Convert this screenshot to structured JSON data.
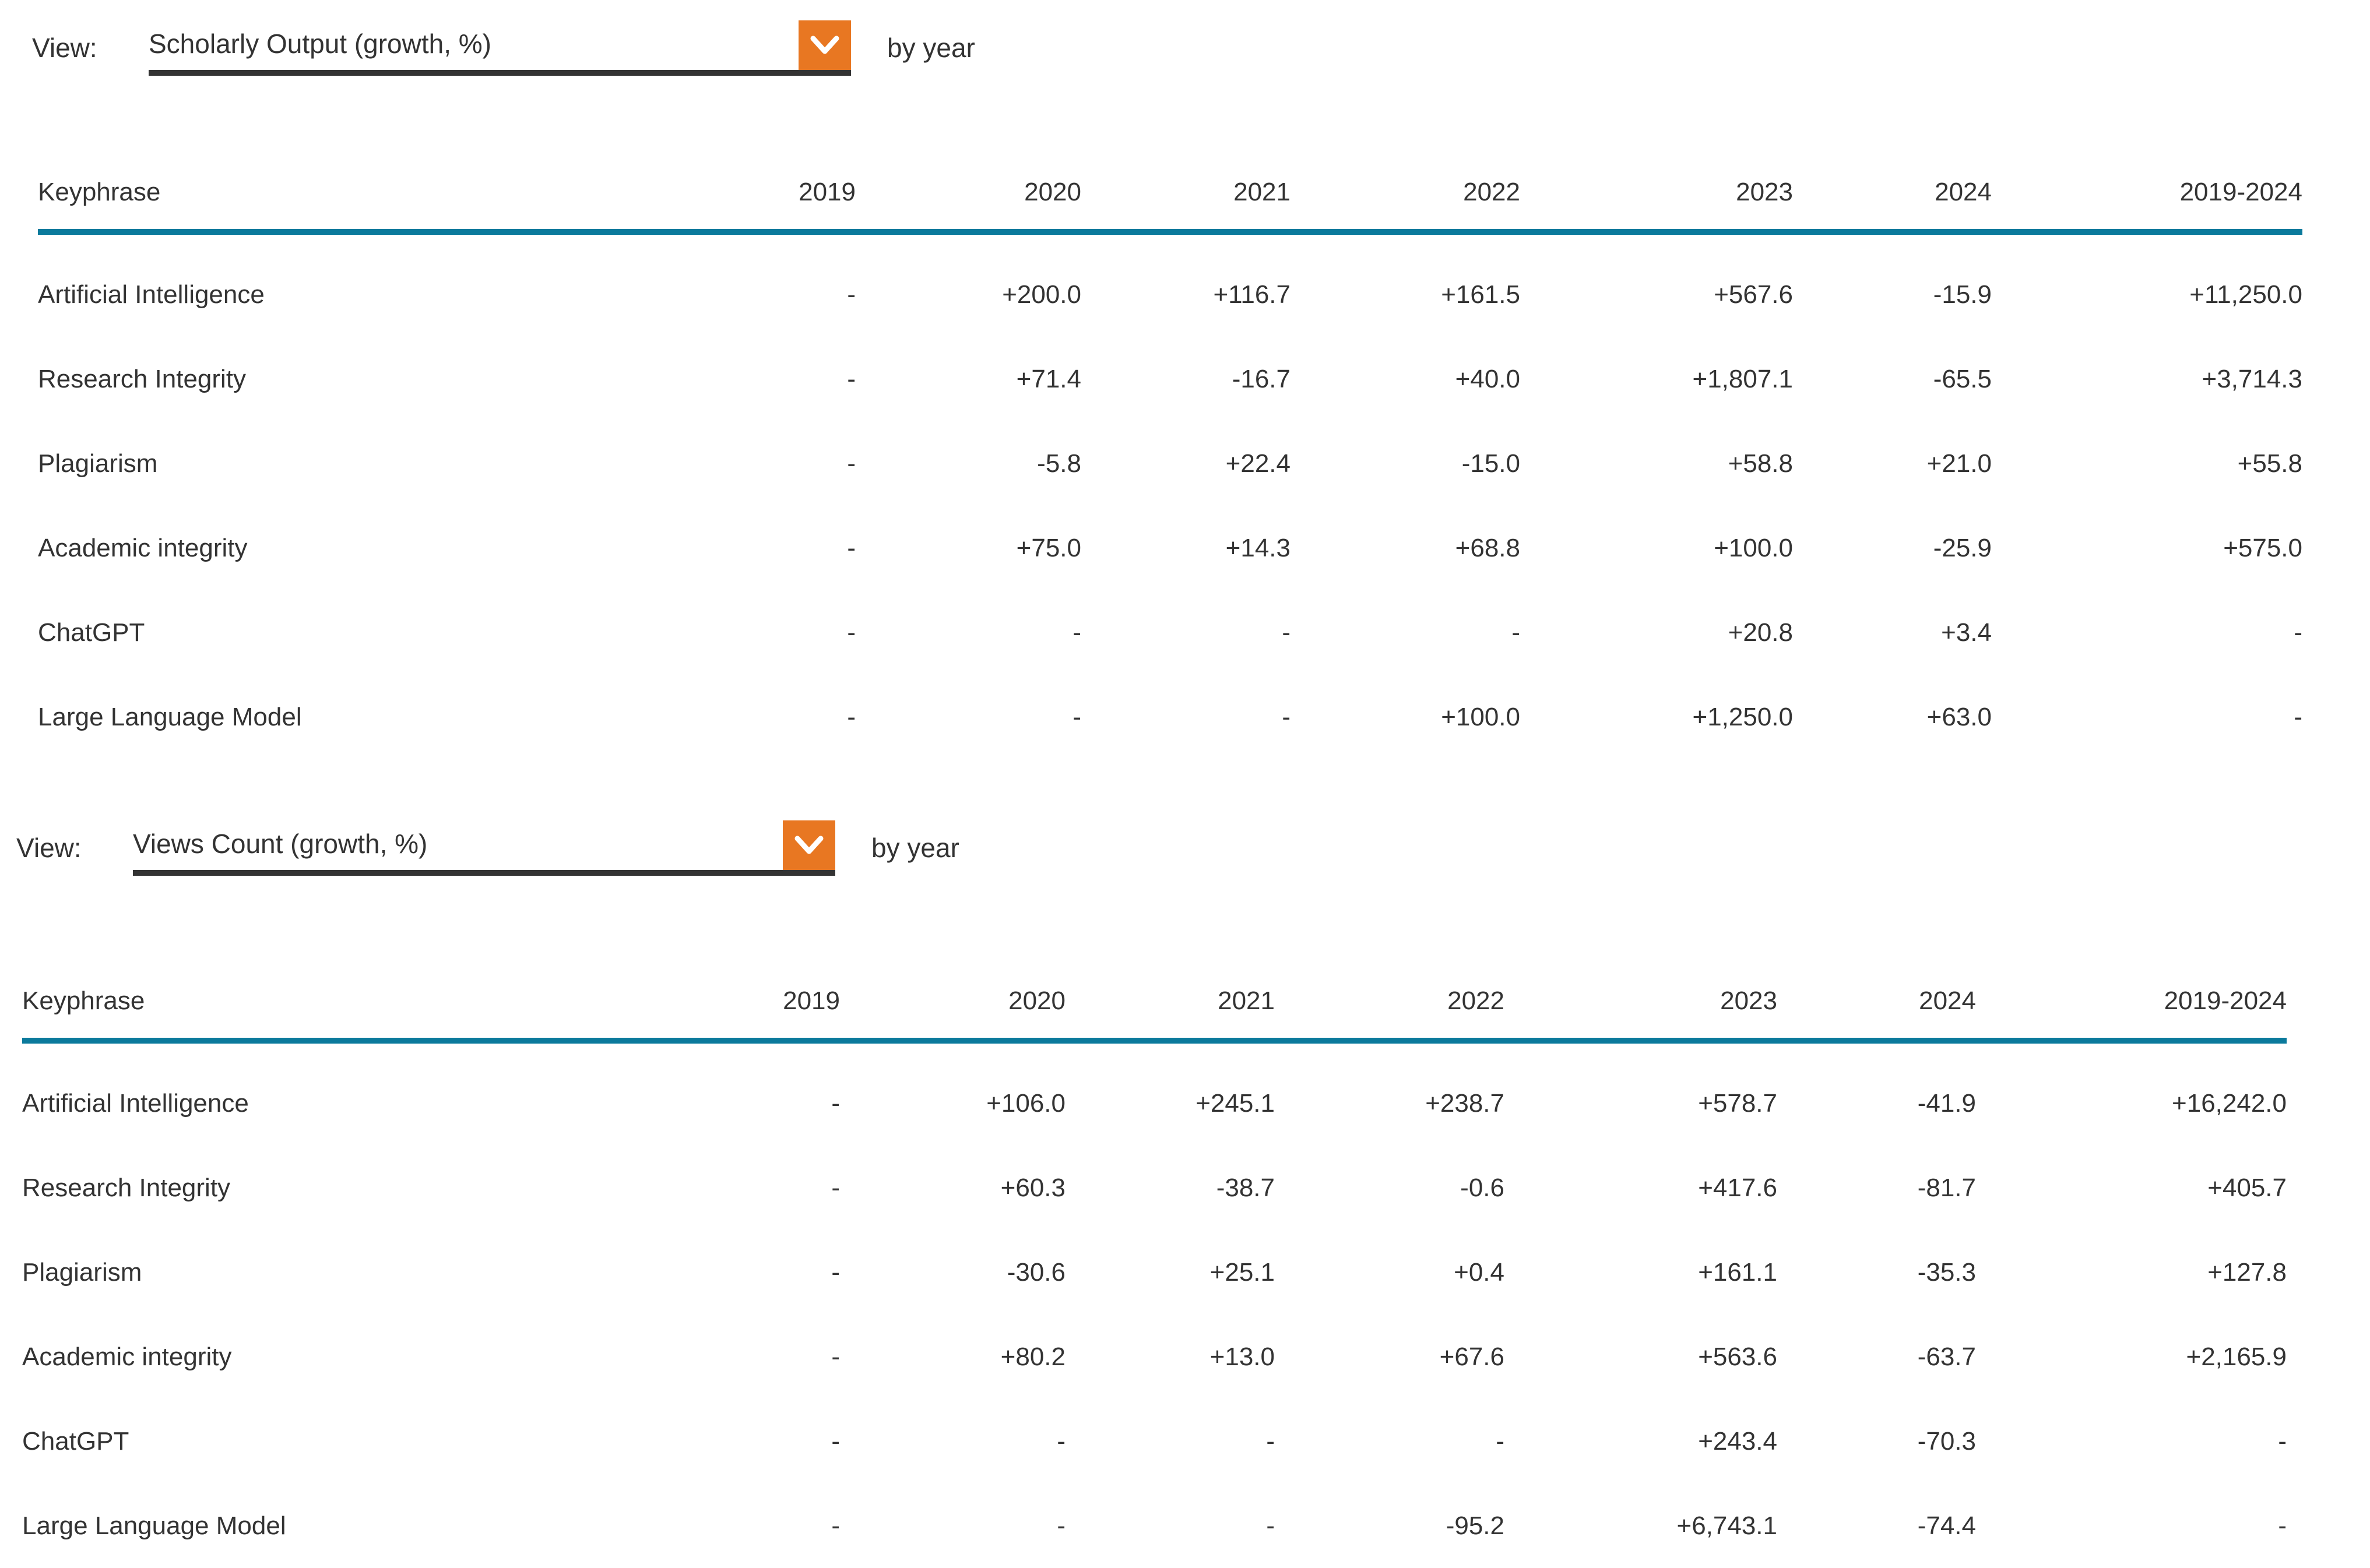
{
  "colors": {
    "accent_orange": "#e87722",
    "header_rule_teal": "#0b7a9c",
    "underline_dark": "#333333",
    "text": "#333333"
  },
  "sections": [
    {
      "view_label": "View:",
      "view_value": "Scholarly Output (growth, %)",
      "by_year": "by year",
      "table": {
        "columns": [
          "Keyphrase",
          "2019",
          "2020",
          "2021",
          "2022",
          "2023",
          "2024",
          "2019-2024"
        ],
        "rows": [
          {
            "keyphrase": "Artificial Intelligence",
            "values": [
              "-",
              "+200.0",
              "+116.7",
              "+161.5",
              "+567.6",
              "-15.9",
              "+11,250.0"
            ]
          },
          {
            "keyphrase": "Research Integrity",
            "values": [
              "-",
              "+71.4",
              "-16.7",
              "+40.0",
              "+1,807.1",
              "-65.5",
              "+3,714.3"
            ]
          },
          {
            "keyphrase": "Plagiarism",
            "values": [
              "-",
              "-5.8",
              "+22.4",
              "-15.0",
              "+58.8",
              "+21.0",
              "+55.8"
            ]
          },
          {
            "keyphrase": "Academic integrity",
            "values": [
              "-",
              "+75.0",
              "+14.3",
              "+68.8",
              "+100.0",
              "-25.9",
              "+575.0"
            ]
          },
          {
            "keyphrase": "ChatGPT",
            "values": [
              "-",
              "-",
              "-",
              "-",
              "+20.8",
              "+3.4",
              "-"
            ]
          },
          {
            "keyphrase": "Large Language Model",
            "values": [
              "-",
              "-",
              "-",
              "+100.0",
              "+1,250.0",
              "+63.0",
              "-"
            ]
          }
        ]
      }
    },
    {
      "view_label": "View:",
      "view_value": "Views Count (growth, %)",
      "by_year": "by year",
      "table": {
        "columns": [
          "Keyphrase",
          "2019",
          "2020",
          "2021",
          "2022",
          "2023",
          "2024",
          "2019-2024"
        ],
        "rows": [
          {
            "keyphrase": "Artificial Intelligence",
            "values": [
              "-",
              "+106.0",
              "+245.1",
              "+238.7",
              "+578.7",
              "-41.9",
              "+16,242.0"
            ]
          },
          {
            "keyphrase": "Research Integrity",
            "values": [
              "-",
              "+60.3",
              "-38.7",
              "-0.6",
              "+417.6",
              "-81.7",
              "+405.7"
            ]
          },
          {
            "keyphrase": "Plagiarism",
            "values": [
              "-",
              "-30.6",
              "+25.1",
              "+0.4",
              "+161.1",
              "-35.3",
              "+127.8"
            ]
          },
          {
            "keyphrase": "Academic integrity",
            "values": [
              "-",
              "+80.2",
              "+13.0",
              "+67.6",
              "+563.6",
              "-63.7",
              "+2,165.9"
            ]
          },
          {
            "keyphrase": "ChatGPT",
            "values": [
              "-",
              "-",
              "-",
              "-",
              "+243.4",
              "-70.3",
              "-"
            ]
          },
          {
            "keyphrase": "Large Language Model",
            "values": [
              "-",
              "-",
              "-",
              "-95.2",
              "+6,743.1",
              "-74.4",
              "-"
            ]
          }
        ]
      }
    }
  ]
}
